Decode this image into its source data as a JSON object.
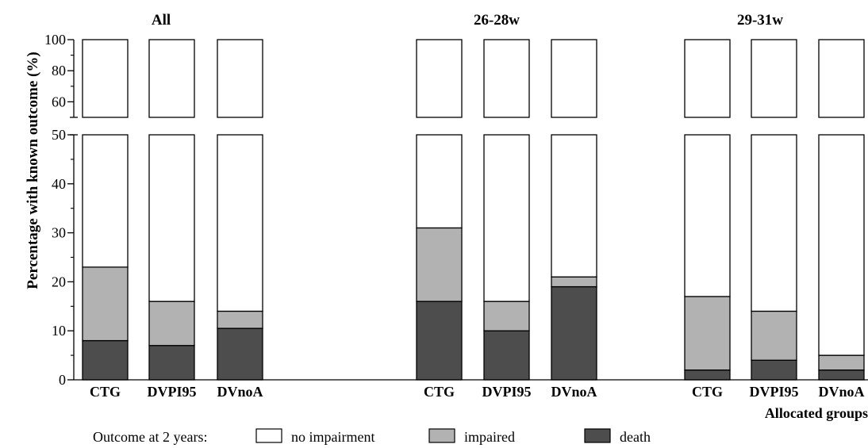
{
  "chart_data": {
    "type": "bar",
    "stacked": true,
    "broken_y_axis": true,
    "ylabel": "Percentage with known outcome (%)",
    "xlabel": "Allocated groups",
    "y_lower_ticks": [
      0,
      10,
      20,
      30,
      40,
      50
    ],
    "y_upper_ticks": [
      60,
      80,
      100
    ],
    "y_lower_range": [
      0,
      50
    ],
    "y_upper_range": [
      50,
      100
    ],
    "groups": [
      {
        "title": "All",
        "bars": [
          {
            "label": "CTG",
            "death": 8,
            "impaired": 15,
            "no_impairment": 77
          },
          {
            "label": "DVPI95",
            "death": 7,
            "impaired": 9,
            "no_impairment": 84
          },
          {
            "label": "DVnoA",
            "death": 10.5,
            "impaired": 3.5,
            "no_impairment": 86
          }
        ]
      },
      {
        "title": "26-28w",
        "bars": [
          {
            "label": "CTG",
            "death": 16,
            "impaired": 15,
            "no_impairment": 69
          },
          {
            "label": "DVPI95",
            "death": 10,
            "impaired": 6,
            "no_impairment": 84
          },
          {
            "label": "DVnoA",
            "death": 19,
            "impaired": 2,
            "no_impairment": 79
          }
        ]
      },
      {
        "title": "29-31w",
        "bars": [
          {
            "label": "CTG",
            "death": 2,
            "impaired": 15,
            "no_impairment": 83
          },
          {
            "label": "DVPI95",
            "death": 4,
            "impaired": 10,
            "no_impairment": 86
          },
          {
            "label": "DVnoA",
            "death": 2,
            "impaired": 3,
            "no_impairment": 95
          }
        ]
      }
    ],
    "legend": {
      "title": "Outcome at 2 years:",
      "entries": [
        {
          "key": "no_impairment",
          "label": "no impairment",
          "color": "#ffffff"
        },
        {
          "key": "impaired",
          "label": "impaired",
          "color": "#b2b2b2"
        },
        {
          "key": "death",
          "label": "death",
          "color": "#4d4d4d"
        }
      ]
    }
  }
}
